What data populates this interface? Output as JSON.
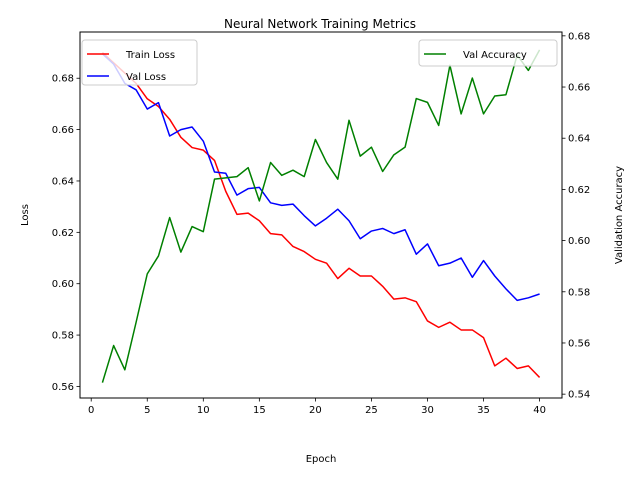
{
  "chart_data": {
    "type": "line",
    "title": "Neural Network Training Metrics",
    "xlabel": "Epoch",
    "ylabel_left": "Loss",
    "ylabel_right": "Validation Accuracy",
    "xlim": [
      -1,
      42
    ],
    "ylim_left": [
      0.5555,
      0.698
    ],
    "ylim_right": [
      0.5385,
      0.6815
    ],
    "x_ticks": [
      0,
      5,
      10,
      15,
      20,
      25,
      30,
      35,
      40
    ],
    "y_ticks_left": [
      0.56,
      0.58,
      0.6,
      0.62,
      0.64,
      0.66,
      0.68
    ],
    "y_ticks_right": [
      0.54,
      0.56,
      0.58,
      0.6,
      0.62,
      0.64,
      0.66,
      0.68
    ],
    "grid": false,
    "legend_left": {
      "placement": "top-left",
      "entries": [
        "Train Loss",
        "Val Loss"
      ]
    },
    "legend_right": {
      "placement": "top-right",
      "entries": [
        "Val Accuracy"
      ]
    },
    "x": [
      1,
      2,
      3,
      4,
      5,
      6,
      7,
      8,
      9,
      10,
      11,
      12,
      13,
      14,
      15,
      16,
      17,
      18,
      19,
      20,
      21,
      22,
      23,
      24,
      25,
      26,
      27,
      28,
      29,
      30,
      31,
      32,
      33,
      34,
      35,
      36,
      37,
      38,
      39,
      40
    ],
    "series": [
      {
        "name": "Train Loss",
        "axis": "left",
        "color": "#ff0000",
        "values": [
          0.69,
          0.686,
          0.682,
          0.678,
          0.672,
          0.669,
          0.664,
          0.657,
          0.653,
          0.652,
          0.648,
          0.636,
          0.627,
          0.6275,
          0.6245,
          0.6195,
          0.619,
          0.6145,
          0.6125,
          0.6095,
          0.608,
          0.602,
          0.606,
          0.603,
          0.603,
          0.599,
          0.594,
          0.5945,
          0.593,
          0.5855,
          0.583,
          0.585,
          0.582,
          0.582,
          0.579,
          0.568,
          0.571,
          0.567,
          0.568,
          0.5635
        ]
      },
      {
        "name": "Val Loss",
        "axis": "left",
        "color": "#0000ff",
        "values": [
          0.6895,
          0.6855,
          0.678,
          0.6755,
          0.668,
          0.6705,
          0.6575,
          0.66,
          0.661,
          0.6555,
          0.6435,
          0.643,
          0.6345,
          0.637,
          0.6375,
          0.6315,
          0.6305,
          0.631,
          0.6265,
          0.6225,
          0.6255,
          0.629,
          0.6245,
          0.6175,
          0.6205,
          0.6215,
          0.6195,
          0.621,
          0.6115,
          0.6155,
          0.607,
          0.608,
          0.61,
          0.6025,
          0.609,
          0.603,
          0.598,
          0.5935,
          0.5945,
          0.596
        ]
      },
      {
        "name": "Val Accuracy",
        "axis": "right",
        "color": "#008000",
        "values": [
          0.5445,
          0.559,
          0.5495,
          0.568,
          0.587,
          0.594,
          0.609,
          0.5955,
          0.6055,
          0.6035,
          0.624,
          0.6245,
          0.625,
          0.6285,
          0.6155,
          0.6305,
          0.6255,
          0.6275,
          0.625,
          0.6395,
          0.6305,
          0.624,
          0.647,
          0.633,
          0.6365,
          0.627,
          0.6335,
          0.6365,
          0.6555,
          0.654,
          0.645,
          0.6685,
          0.6495,
          0.6635,
          0.6495,
          0.6565,
          0.657,
          0.6725,
          0.6665,
          0.6745
        ]
      }
    ]
  }
}
